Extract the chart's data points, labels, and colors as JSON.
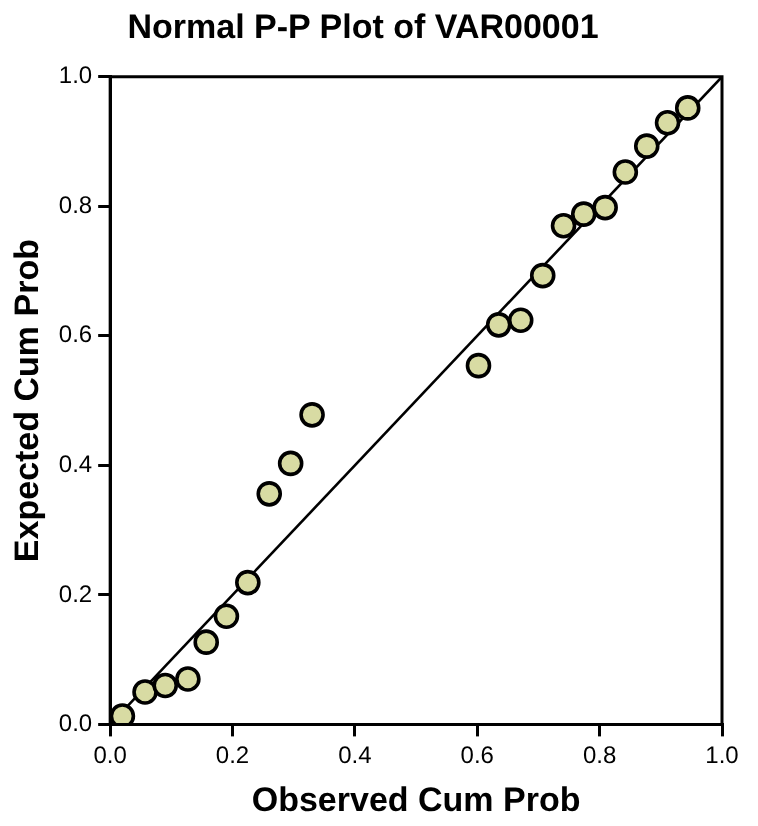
{
  "chart_data": {
    "type": "scatter",
    "title": "Normal P-P Plot of VAR00001",
    "xlabel": "Observed Cum Prob",
    "ylabel": "Expected Cum Prob",
    "series": [
      {
        "marker": "circle",
        "color": "#d8dba3",
        "x": [
          0.02,
          0.057,
          0.09,
          0.127,
          0.157,
          0.19,
          0.225,
          0.26,
          0.295,
          0.33,
          0.602,
          0.635,
          0.671,
          0.707,
          0.741,
          0.774,
          0.809,
          0.842,
          0.877,
          0.911,
          0.944
        ],
        "values": [
          0.013,
          0.05,
          0.06,
          0.07,
          0.127,
          0.167,
          0.219,
          0.356,
          0.403,
          0.478,
          0.554,
          0.617,
          0.624,
          0.693,
          0.77,
          0.788,
          0.798,
          0.853,
          0.893,
          0.929,
          0.952
        ]
      },
      {
        "type": "line",
        "color": "#000000",
        "x": [
          0,
          1
        ],
        "values": [
          0,
          1
        ]
      }
    ],
    "xlim": [
      0,
      1
    ],
    "ylim": [
      0,
      1
    ],
    "xticks": [
      {
        "value": 0,
        "label": "0.0"
      },
      {
        "value": 0.2,
        "label": "0.2"
      },
      {
        "value": 0.4,
        "label": "0.4"
      },
      {
        "value": 0.6,
        "label": "0.6"
      },
      {
        "value": 0.8,
        "label": "0.8"
      },
      {
        "value": 1,
        "label": "1.0"
      }
    ],
    "yticks": [
      {
        "value": 0,
        "label": "0.0"
      },
      {
        "value": 0.2,
        "label": "0.2"
      },
      {
        "value": 0.4,
        "label": "0.4"
      },
      {
        "value": 0.6,
        "label": "0.6"
      },
      {
        "value": 0.8,
        "label": "0.8"
      },
      {
        "value": 1,
        "label": "1.0"
      }
    ],
    "grid": false,
    "legend": false
  }
}
